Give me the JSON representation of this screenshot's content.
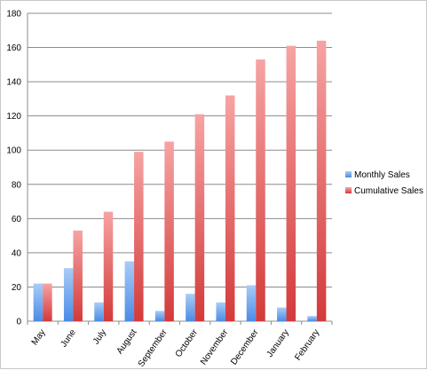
{
  "chart_data": {
    "type": "bar",
    "title": "",
    "xlabel": "",
    "ylabel": "",
    "categories": [
      "May",
      "June",
      "July",
      "August",
      "September",
      "October",
      "November",
      "December",
      "January",
      "February"
    ],
    "series": [
      {
        "name": "Monthly Sales",
        "color": "#5b9bf0",
        "values": [
          22,
          31,
          11,
          35,
          6,
          16,
          11,
          21,
          8,
          3
        ]
      },
      {
        "name": "Cumulative Sales",
        "color": "#e04848",
        "values": [
          22,
          53,
          64,
          99,
          105,
          121,
          132,
          153,
          161,
          164
        ]
      }
    ],
    "ylim": [
      0,
      180
    ],
    "yticks": [
      0,
      20,
      40,
      60,
      80,
      100,
      120,
      140,
      160,
      180
    ],
    "grid": true,
    "legend": "right"
  }
}
